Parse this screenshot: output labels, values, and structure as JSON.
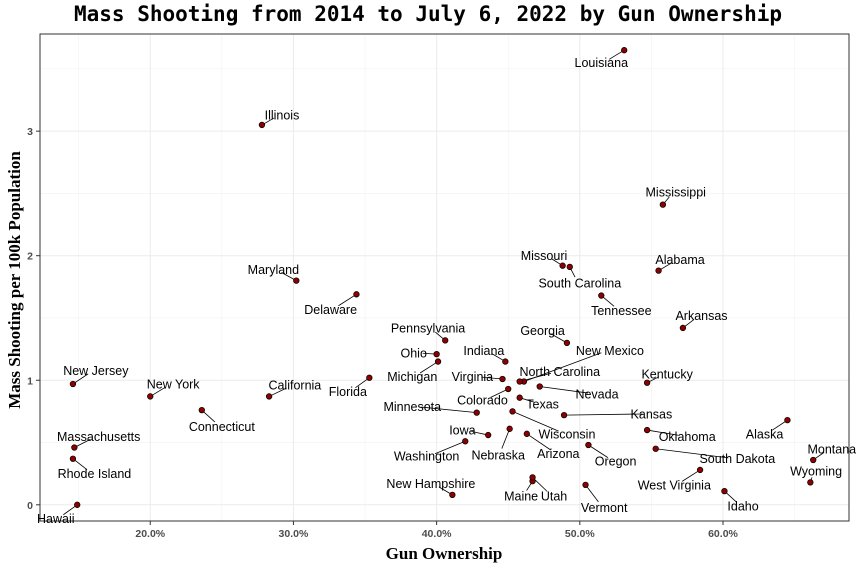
{
  "chart_data": {
    "type": "scatter",
    "title": "Mass Shooting from 2014 to July 6, 2022 by Gun Ownership",
    "xlabel": "Gun Ownership",
    "ylabel": "Mass Shooting per 100k Population",
    "xlim": [
      12.3,
      68.8
    ],
    "ylim": [
      -0.13,
      3.78
    ],
    "x_ticks": [
      20,
      30,
      40,
      50,
      60
    ],
    "x_tick_labels": [
      "20.0%",
      "30.0%",
      "40.0%",
      "50.0%",
      "60.0%"
    ],
    "y_ticks": [
      0,
      1,
      2,
      3
    ],
    "y_tick_labels": [
      "0",
      "1",
      "2",
      "3"
    ],
    "grid": true,
    "point_color": "#8b0000",
    "points": [
      {
        "state": "Louisiana",
        "x": 53.1,
        "y": 3.65,
        "lx": 51.5,
        "ly": 3.55
      },
      {
        "state": "Illinois",
        "x": 27.8,
        "y": 3.05,
        "lx": 29.2,
        "ly": 3.13
      },
      {
        "state": "Mississippi",
        "x": 55.8,
        "y": 2.41,
        "lx": 56.7,
        "ly": 2.51
      },
      {
        "state": "Alabama",
        "x": 55.5,
        "y": 1.88,
        "lx": 57.0,
        "ly": 1.97
      },
      {
        "state": "Missouri",
        "x": 48.8,
        "y": 1.92,
        "lx": 47.5,
        "ly": 2.0
      },
      {
        "state": "South Carolina",
        "x": 49.3,
        "y": 1.91,
        "lx": 50.0,
        "ly": 1.78
      },
      {
        "state": "Maryland",
        "x": 30.2,
        "y": 1.8,
        "lx": 28.6,
        "ly": 1.89
      },
      {
        "state": "Delaware",
        "x": 34.4,
        "y": 1.69,
        "lx": 32.6,
        "ly": 1.57
      },
      {
        "state": "Tennessee",
        "x": 51.5,
        "y": 1.68,
        "lx": 52.9,
        "ly": 1.56
      },
      {
        "state": "Arkansas",
        "x": 57.2,
        "y": 1.42,
        "lx": 58.5,
        "ly": 1.52
      },
      {
        "state": "Pennsylvania",
        "x": 40.6,
        "y": 1.32,
        "lx": 39.4,
        "ly": 1.42
      },
      {
        "state": "Georgia",
        "x": 49.1,
        "y": 1.3,
        "lx": 47.4,
        "ly": 1.4
      },
      {
        "state": "Ohio",
        "x": 40.0,
        "y": 1.21,
        "lx": 38.4,
        "ly": 1.22
      },
      {
        "state": "New Mexico",
        "x": 46.1,
        "y": 0.99,
        "lx": 52.1,
        "ly": 1.24
      },
      {
        "state": "Indiana",
        "x": 44.8,
        "y": 1.15,
        "lx": 43.3,
        "ly": 1.24
      },
      {
        "state": "Michigan",
        "x": 40.1,
        "y": 1.15,
        "lx": 38.3,
        "ly": 1.03
      },
      {
        "state": "North Carolina",
        "x": 45.8,
        "y": 0.99,
        "lx": 48.6,
        "ly": 1.07
      },
      {
        "state": "Kentucky",
        "x": 54.7,
        "y": 0.98,
        "lx": 56.1,
        "ly": 1.05
      },
      {
        "state": "Virginia",
        "x": 44.6,
        "y": 1.01,
        "lx": 42.5,
        "ly": 1.03
      },
      {
        "state": "Florida",
        "x": 35.3,
        "y": 1.02,
        "lx": 33.8,
        "ly": 0.91
      },
      {
        "state": "Nevada",
        "x": 47.2,
        "y": 0.95,
        "lx": 51.2,
        "ly": 0.89
      },
      {
        "state": "Texas",
        "x": 45.8,
        "y": 0.86,
        "lx": 47.4,
        "ly": 0.81
      },
      {
        "state": "Colorado",
        "x": 45.0,
        "y": 0.93,
        "lx": 43.2,
        "ly": 0.84
      },
      {
        "state": "Minnesota",
        "x": 42.8,
        "y": 0.74,
        "lx": 38.3,
        "ly": 0.79
      },
      {
        "state": "Kansas",
        "x": 48.9,
        "y": 0.72,
        "lx": 55.0,
        "ly": 0.73
      },
      {
        "state": "Wisconsin",
        "x": 45.3,
        "y": 0.75,
        "lx": 49.1,
        "ly": 0.57
      },
      {
        "state": "Iowa",
        "x": 43.6,
        "y": 0.56,
        "lx": 41.8,
        "ly": 0.6
      },
      {
        "state": "Oklahoma",
        "x": 54.7,
        "y": 0.6,
        "lx": 57.5,
        "ly": 0.55
      },
      {
        "state": "Alaska",
        "x": 64.5,
        "y": 0.68,
        "lx": 62.9,
        "ly": 0.57
      },
      {
        "state": "Arizona",
        "x": 46.3,
        "y": 0.57,
        "lx": 48.5,
        "ly": 0.41
      },
      {
        "state": "Nebraska",
        "x": 45.1,
        "y": 0.61,
        "lx": 44.3,
        "ly": 0.4
      },
      {
        "state": "Washington",
        "x": 42.0,
        "y": 0.51,
        "lx": 39.3,
        "ly": 0.39
      },
      {
        "state": "Oregon",
        "x": 50.6,
        "y": 0.48,
        "lx": 52.5,
        "ly": 0.35
      },
      {
        "state": "South Dakota",
        "x": 55.3,
        "y": 0.45,
        "lx": 61.0,
        "ly": 0.37
      },
      {
        "state": "Montana",
        "x": 66.3,
        "y": 0.36,
        "lx": 67.6,
        "ly": 0.45
      },
      {
        "state": "Wyoming",
        "x": 66.1,
        "y": 0.18,
        "lx": 66.5,
        "ly": 0.27
      },
      {
        "state": "West Virginia",
        "x": 58.4,
        "y": 0.28,
        "lx": 56.6,
        "ly": 0.16
      },
      {
        "state": "New Hampshire",
        "x": 41.1,
        "y": 0.08,
        "lx": 39.6,
        "ly": 0.17
      },
      {
        "state": "Maine",
        "x": 46.7,
        "y": 0.19,
        "lx": 45.9,
        "ly": 0.07
      },
      {
        "state": "Utah",
        "x": 46.7,
        "y": 0.22,
        "lx": 48.2,
        "ly": 0.07
      },
      {
        "state": "Vermont",
        "x": 50.4,
        "y": 0.16,
        "lx": 51.7,
        "ly": -0.02
      },
      {
        "state": "Idaho",
        "x": 60.1,
        "y": 0.11,
        "lx": 61.4,
        "ly": -0.01
      },
      {
        "state": "New Jersey",
        "x": 14.6,
        "y": 0.97,
        "lx": 16.2,
        "ly": 1.08
      },
      {
        "state": "New York",
        "x": 20.0,
        "y": 0.87,
        "lx": 21.6,
        "ly": 0.97
      },
      {
        "state": "California",
        "x": 28.3,
        "y": 0.87,
        "lx": 30.1,
        "ly": 0.96
      },
      {
        "state": "Connecticut",
        "x": 23.6,
        "y": 0.76,
        "lx": 25.0,
        "ly": 0.63
      },
      {
        "state": "Massachusetts",
        "x": 14.7,
        "y": 0.46,
        "lx": 16.4,
        "ly": 0.55
      },
      {
        "state": "Rhode Island",
        "x": 14.6,
        "y": 0.37,
        "lx": 16.1,
        "ly": 0.25
      },
      {
        "state": "Hawaii",
        "x": 14.9,
        "y": 0.0,
        "lx": 13.4,
        "ly": -0.11
      }
    ]
  }
}
